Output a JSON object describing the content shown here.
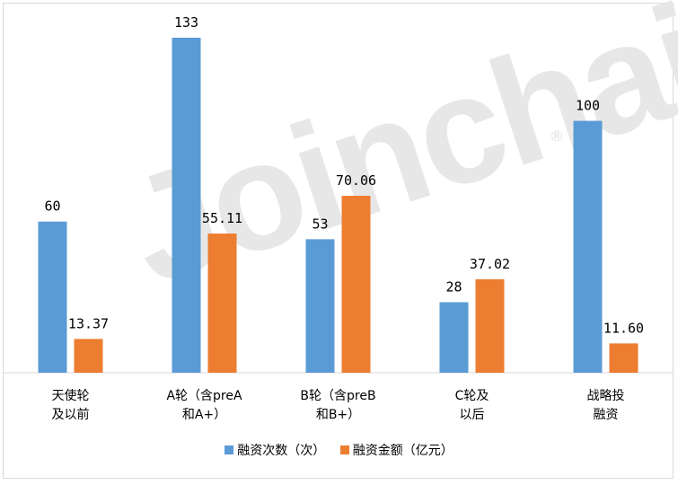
{
  "chart_data": {
    "type": "bar",
    "categories": [
      [
        "天使轮",
        "及以前"
      ],
      [
        "A轮（含preA",
        "和A+）"
      ],
      [
        "B轮（含preB",
        "和B+）"
      ],
      [
        "C轮及",
        "以后"
      ],
      [
        "战略投",
        "融资"
      ]
    ],
    "series": [
      {
        "name": "融资次数（次）",
        "values": [
          60,
          133,
          53,
          28,
          100
        ],
        "labels": [
          "60",
          "133",
          "53",
          "28",
          "100"
        ],
        "color": "#5b9bd5"
      },
      {
        "name": "融资金额（亿元）",
        "values": [
          13.37,
          55.11,
          70.06,
          37.02,
          11.6
        ],
        "labels": [
          "13.37",
          "55.11",
          "70.06",
          "37.02",
          "11.60"
        ],
        "color": "#ed7d31"
      }
    ],
    "watermark": "Joinchain",
    "watermark_mark": "®",
    "legend_position": "bottom",
    "grid": false
  }
}
